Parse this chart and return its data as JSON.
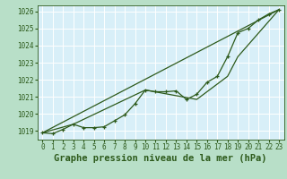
{
  "bg_color": "#b8dfc8",
  "plot_bg_color": "#d8eff8",
  "grid_color": "#ffffff",
  "line_color": "#2d5a1b",
  "title": "Graphe pression niveau de la mer (hPa)",
  "xlim": [
    -0.5,
    23.5
  ],
  "ylim": [
    1018.5,
    1026.35
  ],
  "yticks": [
    1019,
    1020,
    1021,
    1022,
    1023,
    1024,
    1025,
    1026
  ],
  "xticks": [
    0,
    1,
    2,
    3,
    4,
    5,
    6,
    7,
    8,
    9,
    10,
    11,
    12,
    13,
    14,
    15,
    16,
    17,
    18,
    19,
    20,
    21,
    22,
    23
  ],
  "line1_x": [
    0,
    1,
    2,
    3,
    4,
    5,
    6,
    7,
    8,
    9,
    10,
    11,
    12,
    13,
    14,
    15,
    16,
    17,
    18,
    19,
    20,
    21,
    22,
    23
  ],
  "line1_y": [
    1018.9,
    1018.85,
    1019.1,
    1019.4,
    1019.2,
    1019.2,
    1019.25,
    1019.6,
    1019.95,
    1020.6,
    1021.4,
    1021.3,
    1021.3,
    1021.35,
    1020.85,
    1021.15,
    1021.85,
    1022.2,
    1023.35,
    1024.75,
    1025.0,
    1025.5,
    1025.85,
    1026.1
  ],
  "line2_x": [
    0,
    23
  ],
  "line2_y": [
    1018.9,
    1026.1
  ],
  "line3_x": [
    0,
    3,
    10,
    15,
    18,
    19,
    23
  ],
  "line3_y": [
    1018.9,
    1019.4,
    1021.4,
    1020.85,
    1022.2,
    1023.35,
    1026.1
  ],
  "tick_fontsize": 5.5,
  "title_fontsize": 7.5
}
